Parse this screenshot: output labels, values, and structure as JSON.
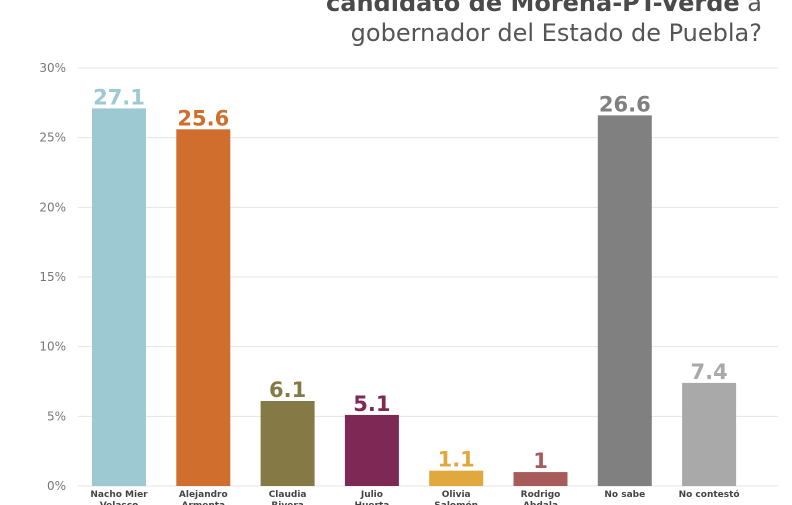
{
  "title": {
    "line1_bold": "candidato de Morena-PT-Verde",
    "line1_rest": " a",
    "line2": "gobernador del Estado de Puebla?"
  },
  "chart_data": {
    "type": "bar",
    "categories": [
      [
        "Nacho Mier",
        "Velasco"
      ],
      [
        "Alejandro",
        "Armenta"
      ],
      [
        "Claudia",
        "Rivera"
      ],
      [
        "Julio",
        "Huerta"
      ],
      [
        "Olivia",
        "Salomón"
      ],
      [
        "Rodrigo",
        "Abdala"
      ],
      [
        "No sabe"
      ],
      [
        "No contestó"
      ]
    ],
    "values": [
      27.1,
      25.6,
      6.1,
      5.1,
      1.1,
      1,
      26.6,
      7.4
    ],
    "value_labels": [
      "27.1",
      "25.6",
      "6.1",
      "5.1",
      "1.1",
      "1",
      "26.6",
      "7.4"
    ],
    "colors": [
      "#9cc9d2",
      "#cf6e2d",
      "#857a45",
      "#7e2955",
      "#e0a83d",
      "#a85b5b",
      "#808080",
      "#a9a9a9"
    ],
    "ylim": [
      0,
      30
    ],
    "y_ticks": [
      0,
      5,
      10,
      15,
      20,
      25,
      30
    ],
    "y_tick_labels": [
      "0%",
      "5%",
      "10%",
      "15%",
      "20%",
      "25%",
      "30%"
    ],
    "grid": true,
    "legend": "none"
  }
}
